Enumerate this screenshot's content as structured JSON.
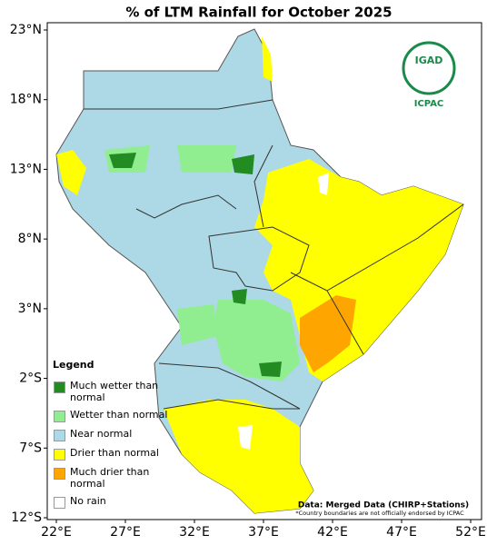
{
  "title": "% of LTM Rainfall for October 2025",
  "map": {
    "xticks": [
      {
        "value": 22,
        "label": "22°E"
      },
      {
        "value": 27,
        "label": "27°E"
      },
      {
        "value": 32,
        "label": "32°E"
      },
      {
        "value": 37,
        "label": "37°E"
      },
      {
        "value": 42,
        "label": "42°E"
      },
      {
        "value": 47,
        "label": "47°E"
      },
      {
        "value": 52,
        "label": "52°E"
      }
    ],
    "yticks": [
      {
        "value": 23,
        "label": "23°N"
      },
      {
        "value": 18,
        "label": "18°N"
      },
      {
        "value": 13,
        "label": "13°N"
      },
      {
        "value": 8,
        "label": "8°N"
      },
      {
        "value": 3,
        "label": "3°N"
      },
      {
        "value": -2,
        "label": "2°S"
      },
      {
        "value": -7,
        "label": "7°S"
      },
      {
        "value": -12,
        "label": "12°S"
      }
    ]
  },
  "logo": {
    "name": "IGAD",
    "subname": "ICPAC"
  },
  "legend": {
    "title": "Legend",
    "items": [
      {
        "label": "Much wetter than normal",
        "color": "#228b22"
      },
      {
        "label": "Wetter than normal",
        "color": "#90ee90"
      },
      {
        "label": "Near normal",
        "color": "#add8e6"
      },
      {
        "label": "Drier than normal",
        "color": "#ffff00"
      },
      {
        "label": "Much drier than normal",
        "color": "#ffa500"
      },
      {
        "label": "No rain",
        "color": "#ffffff"
      }
    ]
  },
  "source": "Data: Merged Data (CHIRP+Stations)",
  "disclaimer": "*Country boundaries are not officially endorsed by ICPAC"
}
